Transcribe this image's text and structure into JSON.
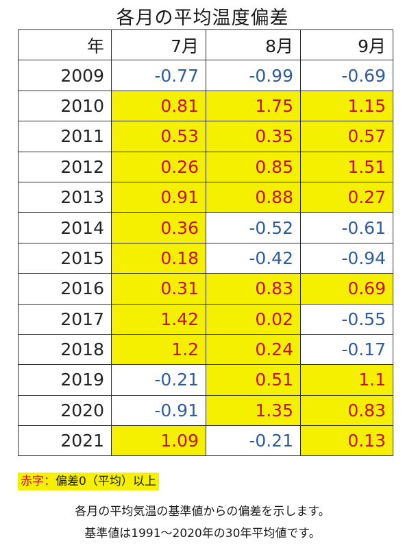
{
  "title": "各月の平均温度偏差",
  "header": {
    "year": "年",
    "months": [
      "7月",
      "8月",
      "9月"
    ]
  },
  "rows": [
    {
      "year": "2009",
      "values": [
        "-0.77",
        "-0.99",
        "-0.69"
      ]
    },
    {
      "year": "2010",
      "values": [
        "0.81",
        "1.75",
        "1.15"
      ]
    },
    {
      "year": "2011",
      "values": [
        "0.53",
        "0.35",
        "0.57"
      ]
    },
    {
      "year": "2012",
      "values": [
        "0.26",
        "0.85",
        "1.51"
      ]
    },
    {
      "year": "2013",
      "values": [
        "0.91",
        "0.88",
        "0.27"
      ]
    },
    {
      "year": "2014",
      "values": [
        "0.36",
        "-0.52",
        "-0.61"
      ]
    },
    {
      "year": "2015",
      "values": [
        "0.18",
        "-0.42",
        "-0.94"
      ]
    },
    {
      "year": "2016",
      "values": [
        "0.31",
        "0.83",
        "0.69"
      ]
    },
    {
      "year": "2017",
      "values": [
        "1.42",
        "0.02",
        "-0.55"
      ]
    },
    {
      "year": "2018",
      "values": [
        "1.2",
        "0.24",
        "-0.17"
      ]
    },
    {
      "year": "2019",
      "values": [
        "-0.21",
        "0.51",
        "1.1"
      ]
    },
    {
      "year": "2020",
      "values": [
        "-0.91",
        "1.35",
        "0.83"
      ]
    },
    {
      "year": "2021",
      "values": [
        "1.09",
        "-0.21",
        "0.13"
      ]
    }
  ],
  "legend": {
    "highlight": "赤字：",
    "rest": "偏差0（平均）以上"
  },
  "notes": [
    "各月の平均気温の基準値からの偏差を示します。",
    "基準値は1991～2020年の30年平均値です。"
  ],
  "colors": {
    "positive_text": "#c8102e",
    "positive_fill": "#f4f000",
    "negative_text": "#2e5c9e"
  }
}
